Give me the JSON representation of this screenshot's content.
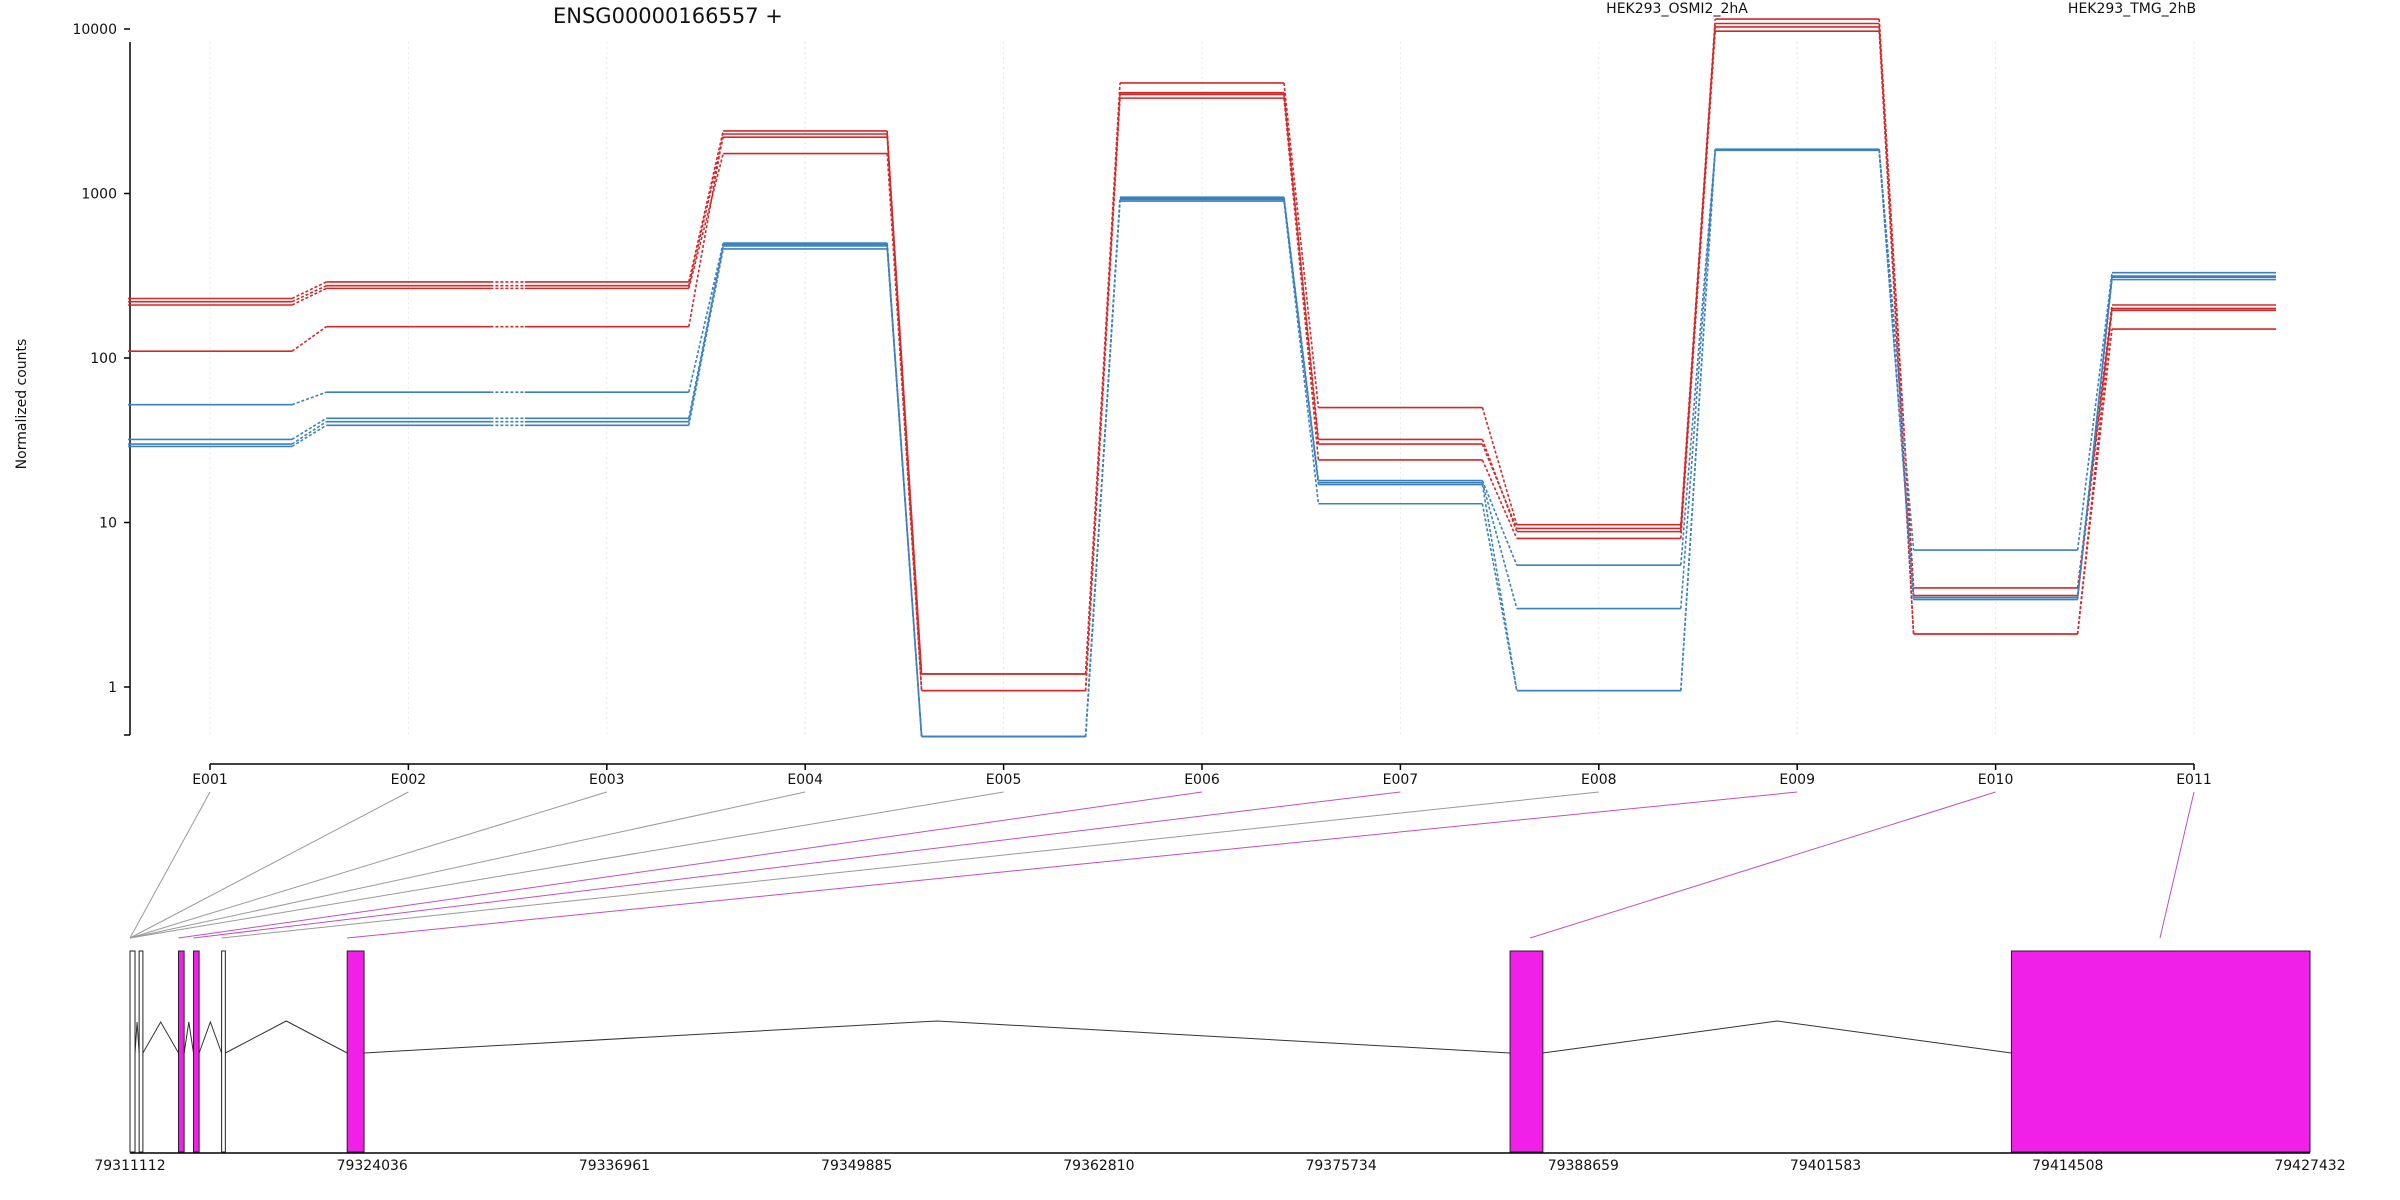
{
  "chart_data": {
    "type": "line",
    "title": "ENSG00000166557 +",
    "ylabel": "Normalized counts",
    "xlabel": "",
    "y_scale": "log",
    "y_ticks": [
      1,
      10,
      100,
      1000,
      10000
    ],
    "y_tick_labels": [
      "1",
      "10",
      "100",
      "1000",
      "10000"
    ],
    "categories": [
      "E001",
      "E002",
      "E003",
      "E004",
      "E005",
      "E006",
      "E007",
      "E008",
      "E009",
      "E010",
      "E011"
    ],
    "grid": true,
    "legend_position": "top",
    "groups": [
      {
        "name": "HEK293_OSMI2_2hA",
        "color": "#d62728"
      },
      {
        "name": "HEK293_TMG_2hB",
        "color": "#3b80c0"
      }
    ],
    "series": [
      {
        "group": 0,
        "values": [
          230,
          290,
          290,
          2400,
          1.2,
          4700,
          50,
          9.7,
          11500,
          4.0,
          210
        ]
      },
      {
        "group": 0,
        "values": [
          220,
          275,
          275,
          2200,
          0.95,
          4000,
          32,
          8.8,
          10800,
          3.6,
          200
        ]
      },
      {
        "group": 0,
        "values": [
          210,
          265,
          265,
          1750,
          0.95,
          3800,
          24,
          8.0,
          9700,
          2.1,
          150
        ]
      },
      {
        "group": 0,
        "values": [
          110,
          155,
          155,
          2300,
          1.2,
          4100,
          30,
          9.2,
          10300,
          2.1,
          195
        ]
      },
      {
        "group": 1,
        "values": [
          52,
          62,
          62,
          500,
          0.5,
          950,
          18,
          5.5,
          1850,
          6.8,
          330
        ]
      },
      {
        "group": 1,
        "values": [
          32,
          43,
          43,
          490,
          0.5,
          930,
          17.5,
          3.0,
          1840,
          3.5,
          315
        ]
      },
      {
        "group": 1,
        "values": [
          29,
          39,
          39,
          460,
          0.5,
          900,
          13,
          0.95,
          1830,
          3.5,
          300
        ]
      },
      {
        "group": 1,
        "values": [
          30,
          41,
          41,
          480,
          0.5,
          920,
          17,
          0.95,
          1860,
          3.4,
          310
        ]
      }
    ],
    "gene_model": {
      "coordinate_labels": [
        "79311112",
        "79324036",
        "79336961",
        "79349885",
        "79362810",
        "79375734",
        "79388659",
        "79401583",
        "79414508",
        "79427432"
      ],
      "coordinate_range": [
        79311112,
        79427432
      ],
      "exon_color": "#f020e8",
      "exons": [
        {
          "start": 79311112,
          "end": 79311380,
          "differential": false
        },
        {
          "start": 79311600,
          "end": 79311800,
          "differential": false
        },
        {
          "start": 79313700,
          "end": 79314000,
          "differential": true
        },
        {
          "start": 79314500,
          "end": 79314800,
          "differential": true
        },
        {
          "start": 79316000,
          "end": 79316200,
          "differential": false
        },
        {
          "start": 79322700,
          "end": 79323600,
          "differential": true
        },
        {
          "start": 79384750,
          "end": 79386500,
          "differential": true
        },
        {
          "start": 79411500,
          "end": 79427432,
          "differential": true
        }
      ],
      "links": [
        {
          "exon": "E001",
          "differential": false
        },
        {
          "exon": "E002",
          "differential": false
        },
        {
          "exon": "E003",
          "differential": false
        },
        {
          "exon": "E004",
          "differential": false
        },
        {
          "exon": "E005",
          "differential": false
        },
        {
          "exon": "E006",
          "differential": true
        },
        {
          "exon": "E007",
          "differential": true
        },
        {
          "exon": "E008",
          "differential": false
        },
        {
          "exon": "E009",
          "differential": true
        },
        {
          "exon": "E010",
          "differential": true
        },
        {
          "exon": "E011",
          "differential": true
        }
      ]
    }
  }
}
